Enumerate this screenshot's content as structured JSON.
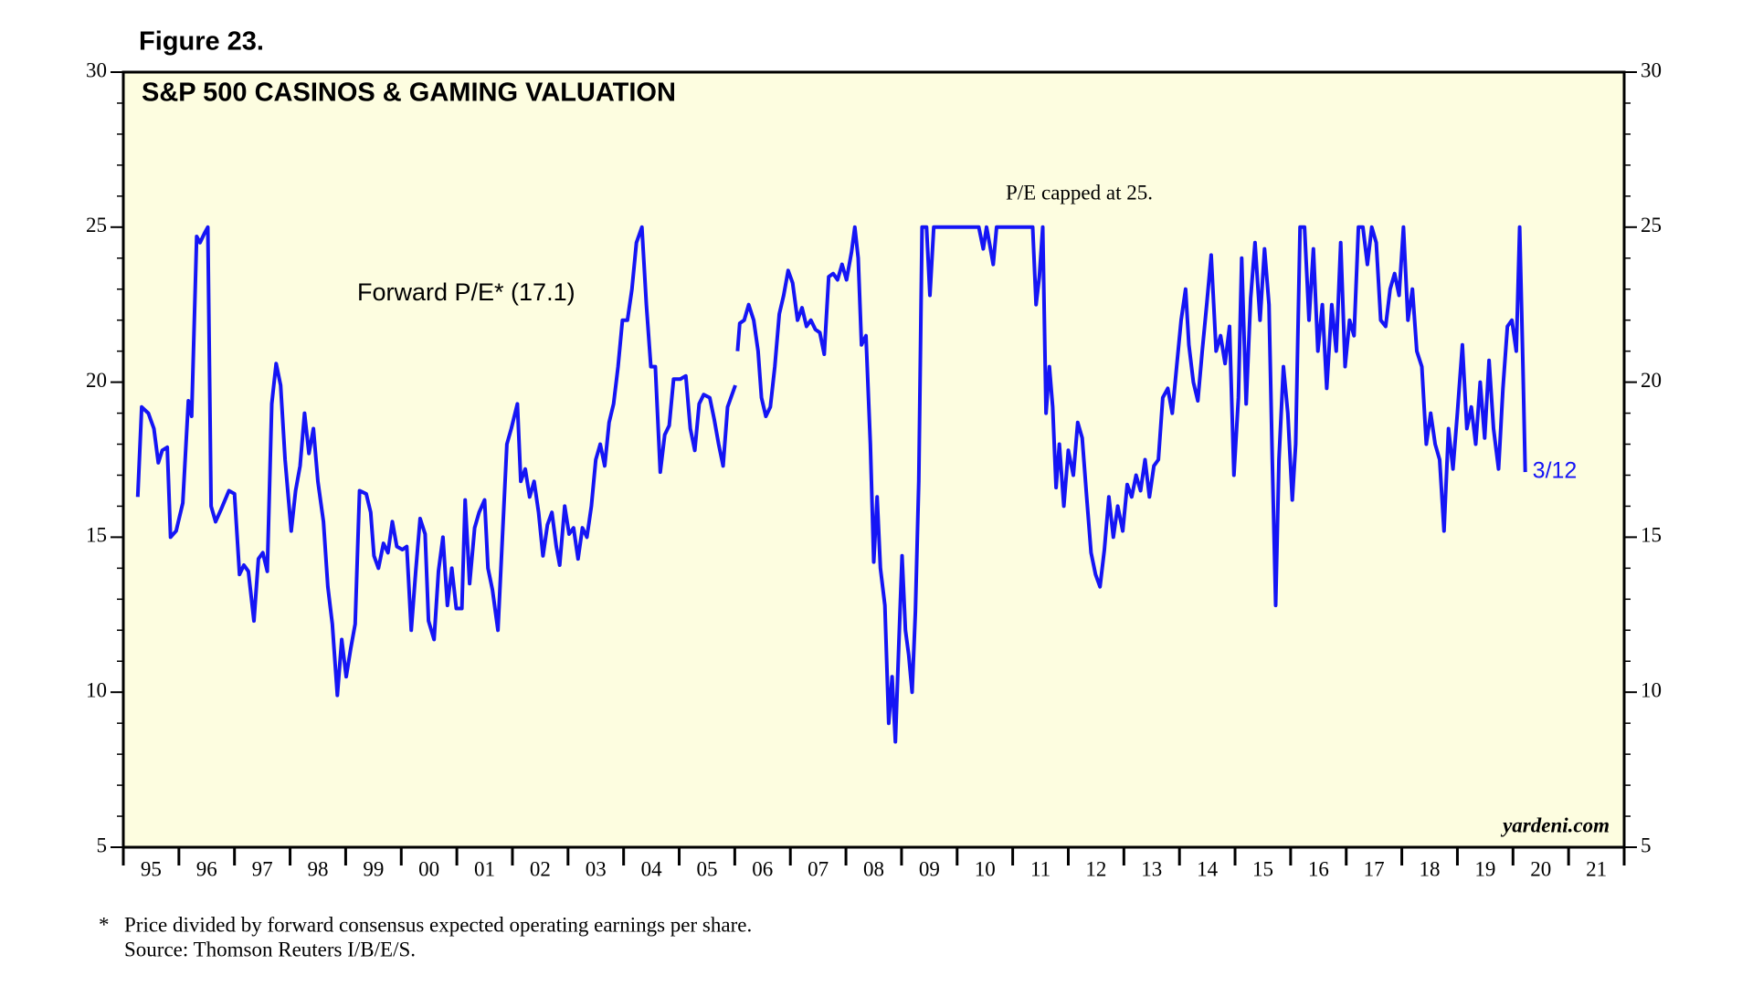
{
  "chart_data": {
    "type": "line",
    "figure": "Figure 23.",
    "title": "S&P 500 CASINOS & GAMING VALUATION",
    "note": "P/E capped at 25.",
    "last_label": "3/12",
    "watermark": "yardeni.com",
    "footnote": "Price divided by forward consensus expected operating earnings per share.",
    "footnote_mark": "*",
    "source": "Source: Thomson Reuters I/B/E/S.",
    "xlim": [
      1995,
      2022
    ],
    "xticks": [
      {
        "value": 1995,
        "label": "95"
      },
      {
        "value": 1996,
        "label": "96"
      },
      {
        "value": 1997,
        "label": "97"
      },
      {
        "value": 1998,
        "label": "98"
      },
      {
        "value": 1999,
        "label": "99"
      },
      {
        "value": 2000,
        "label": "00"
      },
      {
        "value": 2001,
        "label": "01"
      },
      {
        "value": 2002,
        "label": "02"
      },
      {
        "value": 2003,
        "label": "03"
      },
      {
        "value": 2004,
        "label": "04"
      },
      {
        "value": 2005,
        "label": "05"
      },
      {
        "value": 2006,
        "label": "06"
      },
      {
        "value": 2007,
        "label": "07"
      },
      {
        "value": 2008,
        "label": "08"
      },
      {
        "value": 2009,
        "label": "09"
      },
      {
        "value": 2010,
        "label": "10"
      },
      {
        "value": 2011,
        "label": "11"
      },
      {
        "value": 2012,
        "label": "12"
      },
      {
        "value": 2013,
        "label": "13"
      },
      {
        "value": 2014,
        "label": "14"
      },
      {
        "value": 2015,
        "label": "15"
      },
      {
        "value": 2016,
        "label": "16"
      },
      {
        "value": 2017,
        "label": "17"
      },
      {
        "value": 2018,
        "label": "18"
      },
      {
        "value": 2019,
        "label": "19"
      },
      {
        "value": 2020,
        "label": "20"
      },
      {
        "value": 2021,
        "label": "21"
      }
    ],
    "ylim": [
      5,
      30
    ],
    "yticks": [
      5,
      10,
      15,
      20,
      25,
      30
    ],
    "x": [
      1995.26,
      1995.33,
      1995.45,
      1995.55,
      1995.63,
      1995.7,
      1995.79,
      1995.85,
      1995.95,
      1996.07,
      1996.17,
      1996.23,
      1996.32,
      1996.38,
      1996.46,
      1996.52,
      1996.58,
      1996.66,
      1996.76,
      1996.9,
      1997.0,
      1997.09,
      1997.17,
      1997.25,
      1997.35,
      1997.43,
      1997.51,
      1997.59,
      1997.67,
      1997.75,
      1997.83,
      1997.91,
      1998.02,
      1998.1,
      1998.18,
      1998.26,
      1998.34,
      1998.42,
      1998.5,
      1998.6,
      1998.68,
      1998.76,
      1998.85,
      1998.93,
      1999.01,
      1999.09,
      1999.17,
      1999.25,
      1999.37,
      1999.45,
      1999.51,
      1999.59,
      1999.68,
      1999.76,
      1999.84,
      1999.92,
      2000.02,
      2000.1,
      2000.18,
      2000.26,
      2000.34,
      2000.43,
      2000.49,
      2000.59,
      2000.67,
      2000.75,
      2000.83,
      2000.91,
      2000.99,
      2001.09,
      2001.15,
      2001.23,
      2001.32,
      2001.4,
      2001.5,
      2001.56,
      2001.64,
      2001.74,
      2001.82,
      2001.9,
      2001.98,
      2002.09,
      2002.15,
      2002.23,
      2002.31,
      2002.39,
      2002.47,
      2002.55,
      2002.63,
      2002.71,
      2002.79,
      2002.85,
      2002.94,
      2003.02,
      2003.1,
      2003.18,
      2003.26,
      2003.34,
      2003.42,
      2003.5,
      2003.58,
      2003.66,
      2003.74,
      2003.82,
      2003.9,
      2003.98,
      2004.07,
      2004.15,
      2004.23,
      2004.33,
      2004.41,
      2004.49,
      2004.57,
      2004.66,
      2004.74,
      2004.82,
      2004.9,
      2005.02,
      2005.12,
      2005.2,
      2005.28,
      2005.36,
      2005.44,
      2005.55,
      2005.63,
      2005.71,
      2005.79,
      2005.87,
      2006.01,
      2006.03,
      2006.05,
      2006.09,
      2006.17,
      2006.25,
      2006.34,
      2006.42,
      2006.48,
      2006.56,
      2006.64,
      2006.72,
      2006.8,
      2006.88,
      2006.96,
      2007.04,
      2007.13,
      2007.21,
      2007.29,
      2007.37,
      2007.45,
      2007.53,
      2007.61,
      2007.69,
      2007.77,
      2007.85,
      2007.93,
      2008.01,
      2008.1,
      2008.16,
      2008.22,
      2008.28,
      2008.36,
      2008.44,
      2008.5,
      2008.56,
      2008.62,
      2008.7,
      2008.77,
      2008.83,
      2008.89,
      2008.95,
      2009.01,
      2009.07,
      2009.13,
      2009.19,
      2009.25,
      2009.31,
      2009.37,
      2009.45,
      2009.51,
      2009.58,
      2010.39,
      2010.47,
      2010.53,
      2010.59,
      2010.65,
      2010.71,
      2010.79,
      2011.36,
      2011.42,
      2011.48,
      2011.54,
      2011.6,
      2011.66,
      2011.72,
      2011.78,
      2011.84,
      2011.92,
      2012.0,
      2012.09,
      2012.17,
      2012.25,
      2012.33,
      2012.41,
      2012.49,
      2012.57,
      2012.65,
      2012.73,
      2012.81,
      2012.89,
      2012.98,
      2013.06,
      2013.14,
      2013.22,
      2013.3,
      2013.38,
      2013.46,
      2013.54,
      2013.62,
      2013.7,
      2013.79,
      2013.87,
      2013.95,
      2014.03,
      2014.11,
      2014.17,
      2014.25,
      2014.33,
      2014.41,
      2014.49,
      2014.57,
      2014.66,
      2014.74,
      2014.82,
      2014.9,
      2014.98,
      2015.06,
      2015.12,
      2015.2,
      2015.28,
      2015.36,
      2015.45,
      2015.53,
      2015.61,
      2015.67,
      2015.73,
      2015.79,
      2015.87,
      2015.95,
      2016.03,
      2016.09,
      2016.17,
      2016.25,
      2016.33,
      2016.41,
      2016.49,
      2016.57,
      2016.65,
      2016.74,
      2016.82,
      2016.9,
      2016.98,
      2017.06,
      2017.14,
      2017.22,
      2017.3,
      2017.38,
      2017.46,
      2017.54,
      2017.62,
      2017.71,
      2017.79,
      2017.87,
      2017.95,
      2018.03,
      2018.11,
      2018.19,
      2018.27,
      2018.36,
      2018.44,
      2018.52,
      2018.6,
      2018.68,
      2018.76,
      2018.84,
      2018.92,
      2019.0,
      2019.09,
      2019.17,
      2019.25,
      2019.33,
      2019.41,
      2019.49,
      2019.57,
      2019.65,
      2019.74,
      2019.82,
      2019.9,
      2019.98,
      2020.06,
      2020.12,
      2020.18,
      2020.22
    ],
    "series": [
      {
        "name": "Forward P/E* (17.1)",
        "color": "#1515f5",
        "values": [
          16.3,
          19.2,
          19.0,
          18.5,
          17.4,
          17.8,
          17.9,
          15.0,
          15.2,
          16.1,
          19.4,
          18.9,
          24.7,
          24.5,
          24.8,
          25.0,
          16.0,
          15.5,
          15.9,
          16.5,
          16.4,
          13.8,
          14.1,
          13.9,
          12.3,
          14.3,
          14.5,
          13.9,
          19.3,
          20.6,
          19.9,
          17.5,
          15.2,
          16.5,
          17.3,
          19.0,
          17.7,
          18.5,
          16.8,
          15.5,
          13.4,
          12.2,
          9.9,
          11.7,
          10.5,
          11.4,
          12.2,
          16.5,
          16.4,
          15.8,
          14.4,
          14.0,
          14.8,
          14.5,
          15.5,
          14.7,
          14.6,
          14.7,
          12.0,
          13.9,
          15.6,
          15.1,
          12.3,
          11.7,
          13.9,
          15.0,
          12.8,
          14.0,
          12.7,
          12.7,
          16.2,
          13.5,
          15.3,
          15.8,
          16.2,
          14.0,
          13.3,
          12.0,
          15.0,
          18.0,
          18.5,
          19.3,
          16.8,
          17.2,
          16.3,
          16.8,
          15.8,
          14.4,
          15.4,
          15.8,
          14.7,
          14.1,
          16.0,
          15.1,
          15.3,
          14.3,
          15.3,
          15.0,
          16.0,
          17.5,
          18.0,
          17.3,
          18.7,
          19.3,
          20.5,
          22.0,
          22.0,
          23.0,
          24.5,
          25.0,
          22.5,
          20.5,
          20.5,
          17.1,
          18.3,
          18.6,
          20.1,
          20.1,
          20.2,
          18.5,
          17.8,
          19.3,
          19.6,
          19.5,
          18.8,
          18.0,
          17.3,
          19.2,
          19.9,
          null,
          21.0,
          21.9,
          22.0,
          22.5,
          22.0,
          21.0,
          19.5,
          18.9,
          19.2,
          20.5,
          22.2,
          22.8,
          23.6,
          23.2,
          22.0,
          22.4,
          21.8,
          22.0,
          21.7,
          21.6,
          20.9,
          23.4,
          23.5,
          23.3,
          23.8,
          23.3,
          24.2,
          25.0,
          24.0,
          21.2,
          21.5,
          18.0,
          14.2,
          16.3,
          14.0,
          12.8,
          9.0,
          10.5,
          8.4,
          11.5,
          14.4,
          12.0,
          11.2,
          10.0,
          12.6,
          16.8,
          25.0,
          25.0,
          22.8,
          25.0,
          25.0,
          24.3,
          25.0,
          24.4,
          23.8,
          25.0,
          25.0,
          25.0,
          22.5,
          23.4,
          25.0,
          19.0,
          20.5,
          19.2,
          16.6,
          18.0,
          16.0,
          17.8,
          17.0,
          18.7,
          18.2,
          16.3,
          14.5,
          13.8,
          13.4,
          14.6,
          16.3,
          15.0,
          16.0,
          15.2,
          16.7,
          16.3,
          17.0,
          16.5,
          17.5,
          16.3,
          17.3,
          17.5,
          19.5,
          19.8,
          19.0,
          20.5,
          22.0,
          23.0,
          21.2,
          20.0,
          19.4,
          21.0,
          22.5,
          24.1,
          21.0,
          21.5,
          20.6,
          21.8,
          17.0,
          19.5,
          24.0,
          19.3,
          22.7,
          24.5,
          22.0,
          24.3,
          22.5,
          17.5,
          12.8,
          17.5,
          20.5,
          19.0,
          16.2,
          18.0,
          25.0,
          25.0,
          22.0,
          24.3,
          21.0,
          22.5,
          19.8,
          22.5,
          21.0,
          24.5,
          20.5,
          22.0,
          21.5,
          25.0,
          25.0,
          23.8,
          25.0,
          24.5,
          22.0,
          21.8,
          23.0,
          23.5,
          22.8,
          25.0,
          22.0,
          23.0,
          21.0,
          20.5,
          18.0,
          19.0,
          18.0,
          17.5,
          15.2,
          18.5,
          17.2,
          19.0,
          21.2,
          18.5,
          19.2,
          18.0,
          20.0,
          18.2,
          20.7,
          18.5,
          17.2,
          19.8,
          21.8,
          22.0,
          21.0,
          25.0,
          20.5,
          17.1
        ]
      }
    ],
    "plot_background": "#fdfde0"
  }
}
